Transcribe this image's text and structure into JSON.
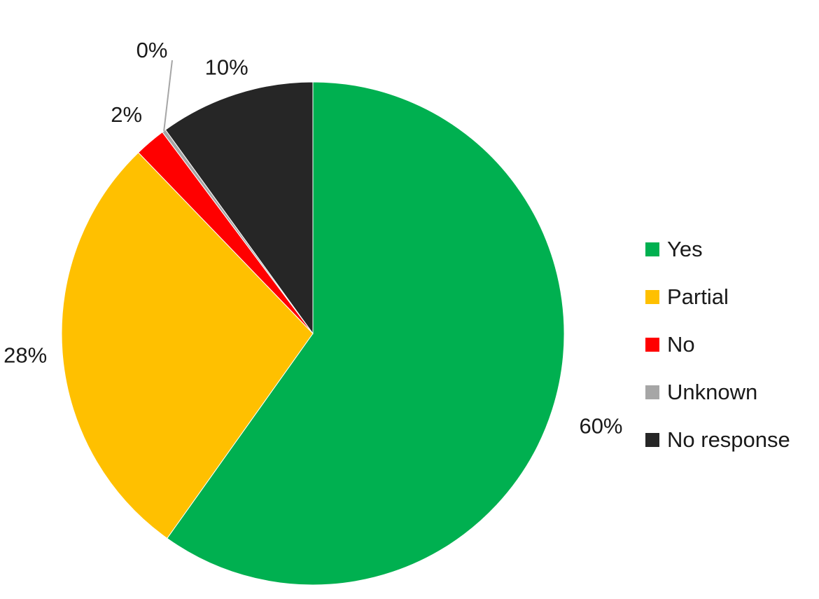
{
  "chart_data": {
    "type": "pie",
    "slices": [
      {
        "name": "Yes",
        "value": 60,
        "label": "60%",
        "color": "#00B050"
      },
      {
        "name": "Partial",
        "value": 28,
        "label": "28%",
        "color": "#FFC000"
      },
      {
        "name": "No",
        "value": 2,
        "label": "2%",
        "color": "#FF0000"
      },
      {
        "name": "Unknown",
        "value": 0.25,
        "label": "0%",
        "color": "#A6A6A6"
      },
      {
        "name": "No response",
        "value": 10,
        "label": "10%",
        "color": "#262626"
      }
    ],
    "legend_position": "right"
  }
}
